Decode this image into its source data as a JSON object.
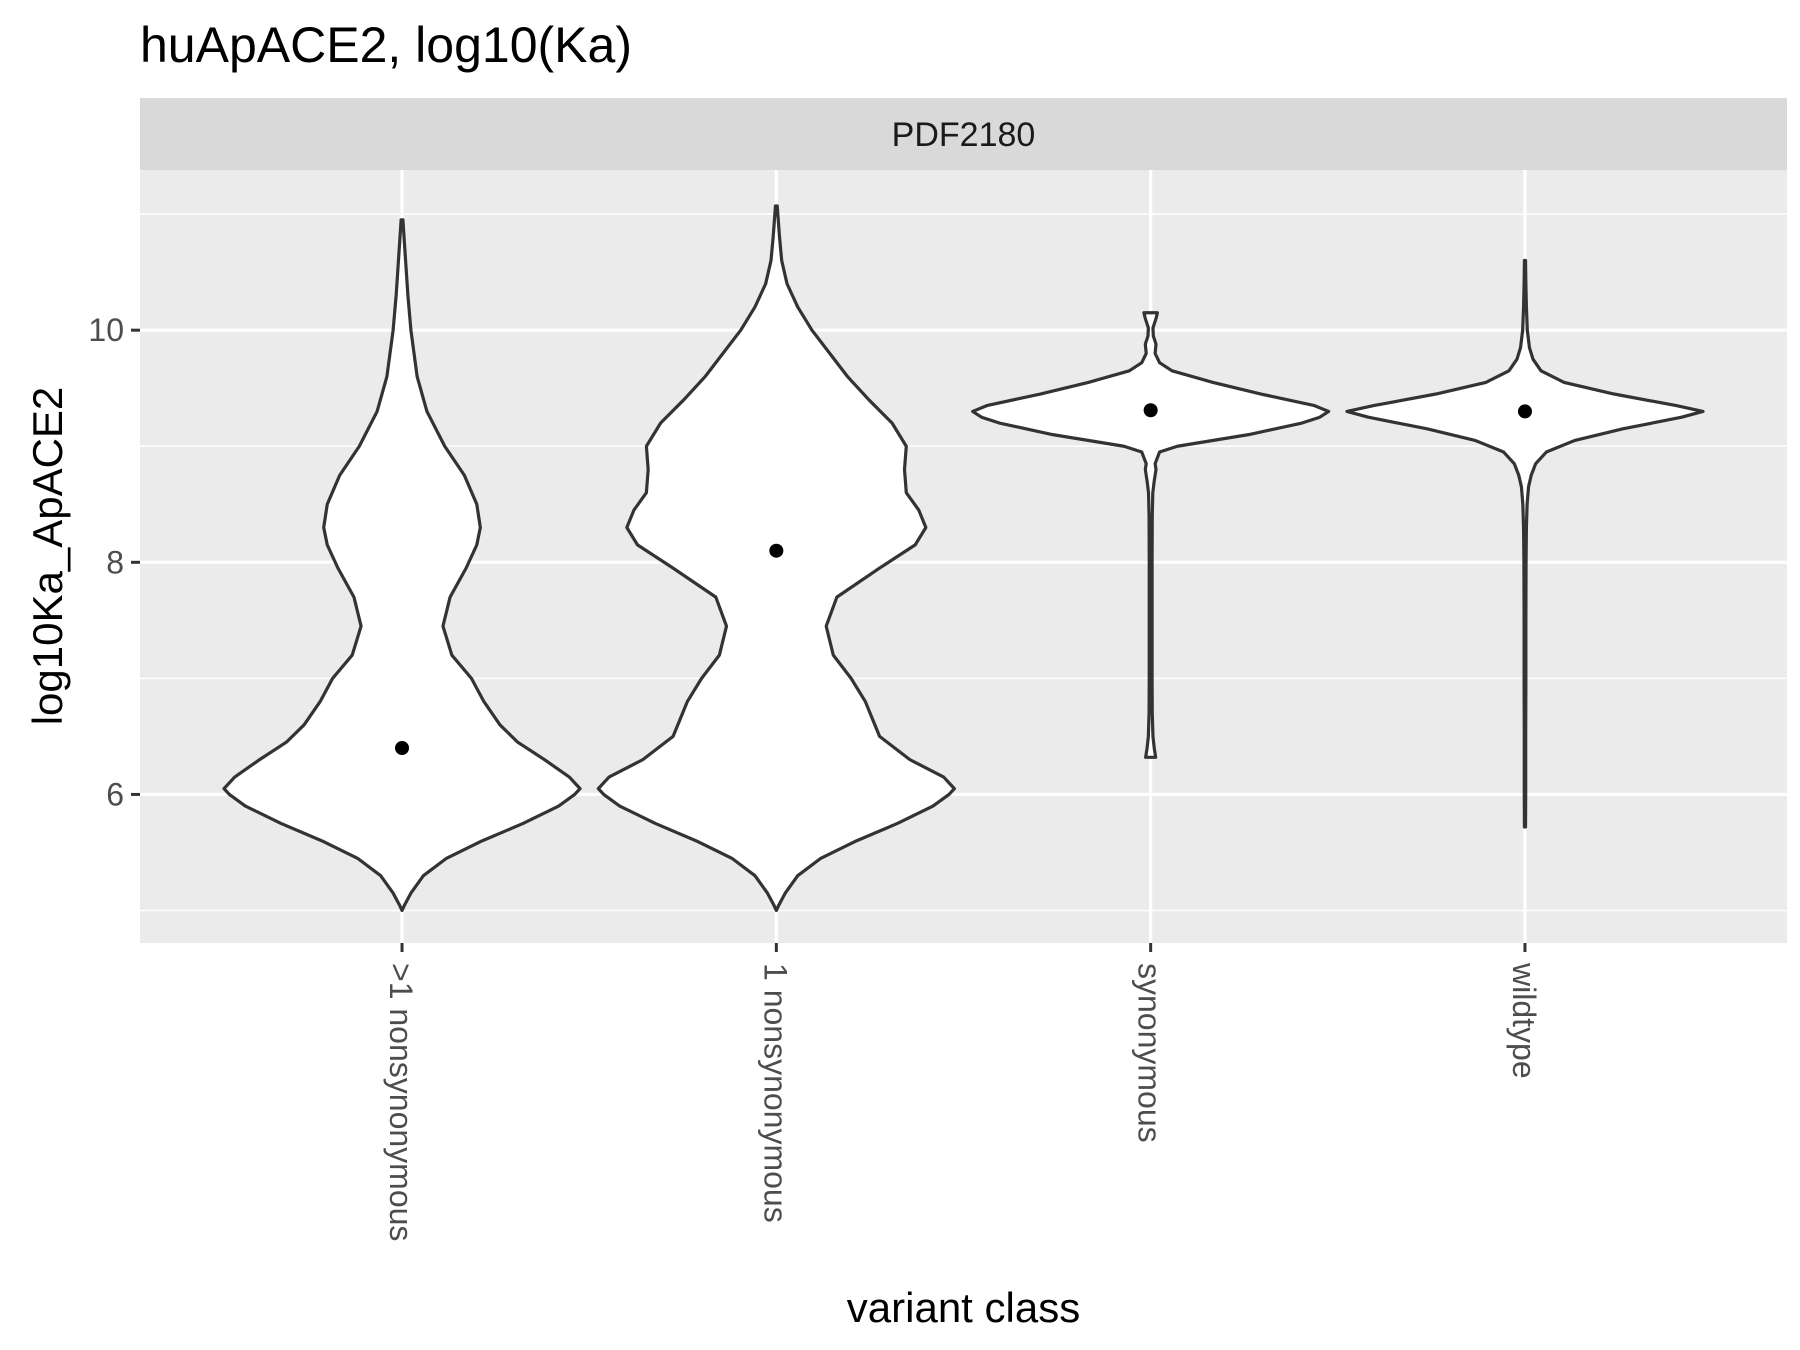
{
  "chart_data": {
    "type": "violin",
    "title": "huApACE2, log10(Ka)",
    "facet": "PDF2180",
    "xlabel": "variant class",
    "ylabel": "log10Ka_ApACE2",
    "categories": [
      ">1 nonsynonymous",
      "1 nonsynonymous",
      "synonymous",
      "wildtype"
    ],
    "y_ticks": [
      6,
      8,
      10
    ],
    "ylim": [
      4.72,
      11.38
    ],
    "grid": true,
    "colors": {
      "panel_bg": "#ebebeb",
      "strip_bg": "#d9d9d9",
      "grid": "#ffffff",
      "violin_fill": "#ffffff",
      "violin_stroke": "#333333",
      "point": "#000000"
    },
    "series": [
      {
        "category": ">1 nonsynonymous",
        "median": 6.4,
        "min": 5.0,
        "max": 10.95,
        "profile": [
          [
            5.0,
            0
          ],
          [
            5.05,
            0.015
          ],
          [
            5.15,
            0.05
          ],
          [
            5.3,
            0.12
          ],
          [
            5.45,
            0.25
          ],
          [
            5.6,
            0.45
          ],
          [
            5.75,
            0.68
          ],
          [
            5.9,
            0.88
          ],
          [
            6.0,
            0.97
          ],
          [
            6.05,
            1.0
          ],
          [
            6.15,
            0.94
          ],
          [
            6.3,
            0.8
          ],
          [
            6.45,
            0.65
          ],
          [
            6.6,
            0.55
          ],
          [
            6.8,
            0.46
          ],
          [
            7.0,
            0.39
          ],
          [
            7.2,
            0.28
          ],
          [
            7.45,
            0.23
          ],
          [
            7.7,
            0.27
          ],
          [
            7.95,
            0.36
          ],
          [
            8.15,
            0.42
          ],
          [
            8.3,
            0.44
          ],
          [
            8.5,
            0.42
          ],
          [
            8.75,
            0.35
          ],
          [
            9.0,
            0.24
          ],
          [
            9.3,
            0.14
          ],
          [
            9.6,
            0.085
          ],
          [
            10.0,
            0.05
          ],
          [
            10.3,
            0.033
          ],
          [
            10.6,
            0.02
          ],
          [
            10.95,
            0.005
          ]
        ]
      },
      {
        "category": "1 nonsynonymous",
        "median": 8.1,
        "min": 5.0,
        "max": 11.07,
        "profile": [
          [
            5.0,
            0
          ],
          [
            5.05,
            0.015
          ],
          [
            5.15,
            0.05
          ],
          [
            5.3,
            0.12
          ],
          [
            5.45,
            0.25
          ],
          [
            5.6,
            0.45
          ],
          [
            5.75,
            0.68
          ],
          [
            5.9,
            0.88
          ],
          [
            6.0,
            0.97
          ],
          [
            6.05,
            1.0
          ],
          [
            6.15,
            0.94
          ],
          [
            6.3,
            0.75
          ],
          [
            6.5,
            0.58
          ],
          [
            6.65,
            0.54
          ],
          [
            6.8,
            0.5
          ],
          [
            7.0,
            0.42
          ],
          [
            7.2,
            0.32
          ],
          [
            7.45,
            0.28
          ],
          [
            7.7,
            0.34
          ],
          [
            7.95,
            0.58
          ],
          [
            8.15,
            0.78
          ],
          [
            8.3,
            0.84
          ],
          [
            8.45,
            0.8
          ],
          [
            8.6,
            0.73
          ],
          [
            8.8,
            0.72
          ],
          [
            9.0,
            0.73
          ],
          [
            9.2,
            0.65
          ],
          [
            9.4,
            0.52
          ],
          [
            9.6,
            0.4
          ],
          [
            9.8,
            0.3
          ],
          [
            10.0,
            0.2
          ],
          [
            10.2,
            0.12
          ],
          [
            10.4,
            0.06
          ],
          [
            10.6,
            0.03
          ],
          [
            10.8,
            0.018
          ],
          [
            11.07,
            0.005
          ]
        ]
      },
      {
        "category": "synonymous",
        "median": 9.31,
        "min": 6.32,
        "max": 10.15,
        "profile": [
          [
            6.32,
            0.028
          ],
          [
            6.4,
            0.02
          ],
          [
            6.5,
            0.013
          ],
          [
            6.7,
            0.009
          ],
          [
            7.0,
            0.008
          ],
          [
            7.5,
            0.008
          ],
          [
            8.0,
            0.008
          ],
          [
            8.4,
            0.009
          ],
          [
            8.6,
            0.012
          ],
          [
            8.7,
            0.02
          ],
          [
            8.8,
            0.03
          ],
          [
            8.85,
            0.025
          ],
          [
            8.95,
            0.05
          ],
          [
            9.0,
            0.15
          ],
          [
            9.1,
            0.55
          ],
          [
            9.2,
            0.85
          ],
          [
            9.25,
            0.95
          ],
          [
            9.3,
            1.0
          ],
          [
            9.35,
            0.92
          ],
          [
            9.45,
            0.62
          ],
          [
            9.55,
            0.35
          ],
          [
            9.65,
            0.12
          ],
          [
            9.72,
            0.05
          ],
          [
            9.8,
            0.025
          ],
          [
            9.88,
            0.03
          ],
          [
            9.95,
            0.015
          ],
          [
            10.02,
            0.013
          ],
          [
            10.1,
            0.03
          ],
          [
            10.15,
            0.038
          ]
        ]
      },
      {
        "category": "wildtype",
        "median": 9.3,
        "min": 5.72,
        "max": 10.6,
        "profile": [
          [
            5.72,
            0.003
          ],
          [
            6.0,
            0.004
          ],
          [
            6.5,
            0.004
          ],
          [
            7.0,
            0.005
          ],
          [
            7.5,
            0.005
          ],
          [
            8.0,
            0.006
          ],
          [
            8.3,
            0.008
          ],
          [
            8.5,
            0.012
          ],
          [
            8.65,
            0.02
          ],
          [
            8.75,
            0.035
          ],
          [
            8.85,
            0.06
          ],
          [
            8.95,
            0.12
          ],
          [
            9.05,
            0.28
          ],
          [
            9.15,
            0.55
          ],
          [
            9.25,
            0.88
          ],
          [
            9.3,
            1.0
          ],
          [
            9.35,
            0.85
          ],
          [
            9.45,
            0.5
          ],
          [
            9.55,
            0.22
          ],
          [
            9.65,
            0.09
          ],
          [
            9.75,
            0.045
          ],
          [
            9.85,
            0.025
          ],
          [
            10.0,
            0.013
          ],
          [
            10.2,
            0.008
          ],
          [
            10.4,
            0.005
          ],
          [
            10.6,
            0.003
          ]
        ]
      }
    ]
  }
}
